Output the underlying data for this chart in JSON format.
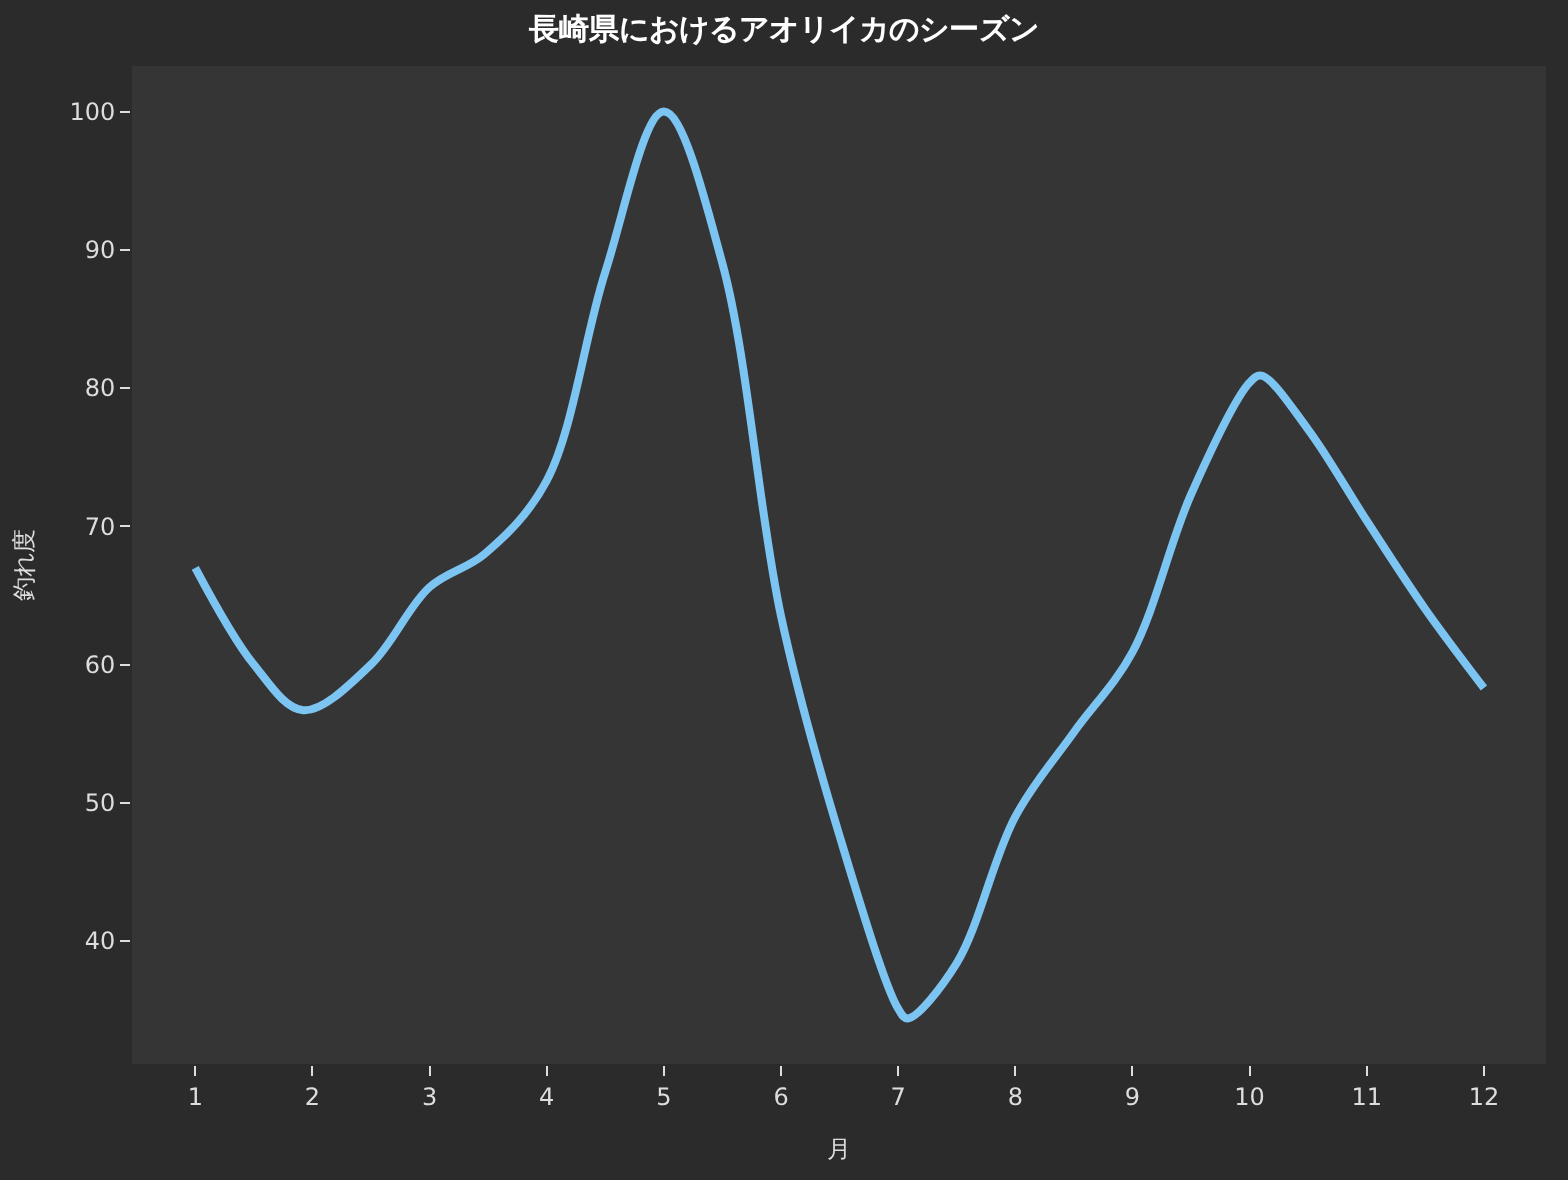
{
  "chart_data": {
    "type": "line",
    "title": "長崎県におけるアオリイカのシーズン",
    "xlabel": "月",
    "ylabel": "釣れ度",
    "x": [
      1,
      1.5,
      1.92,
      2.5,
      3,
      3.47,
      4,
      4.5,
      5,
      5.5,
      6,
      6.5,
      7,
      7.08,
      7.5,
      8,
      8.5,
      9,
      9.5,
      10,
      10.1,
      10.5,
      11,
      11.5,
      12
    ],
    "series": [
      {
        "color": "#7cc4f2",
        "values": [
          67,
          60,
          56.7,
          60,
          65.6,
          68,
          73.3,
          88.4,
          100,
          89,
          63.5,
          47.6,
          35.1,
          34.4,
          38.4,
          49,
          55.1,
          60.9,
          72.3,
          80.4,
          80.9,
          77,
          70.4,
          64,
          58.3
        ]
      }
    ],
    "xlim": [
      0.46,
      12.53
    ],
    "xticks": [
      1,
      2,
      3,
      4,
      5,
      6,
      7,
      8,
      9,
      10,
      11,
      12
    ],
    "ylim": [
      31.1,
      103.3
    ],
    "yticks": [
      40,
      50,
      60,
      70,
      80,
      90,
      100
    ],
    "grid": false,
    "marker": "none",
    "line_style": "solid"
  }
}
